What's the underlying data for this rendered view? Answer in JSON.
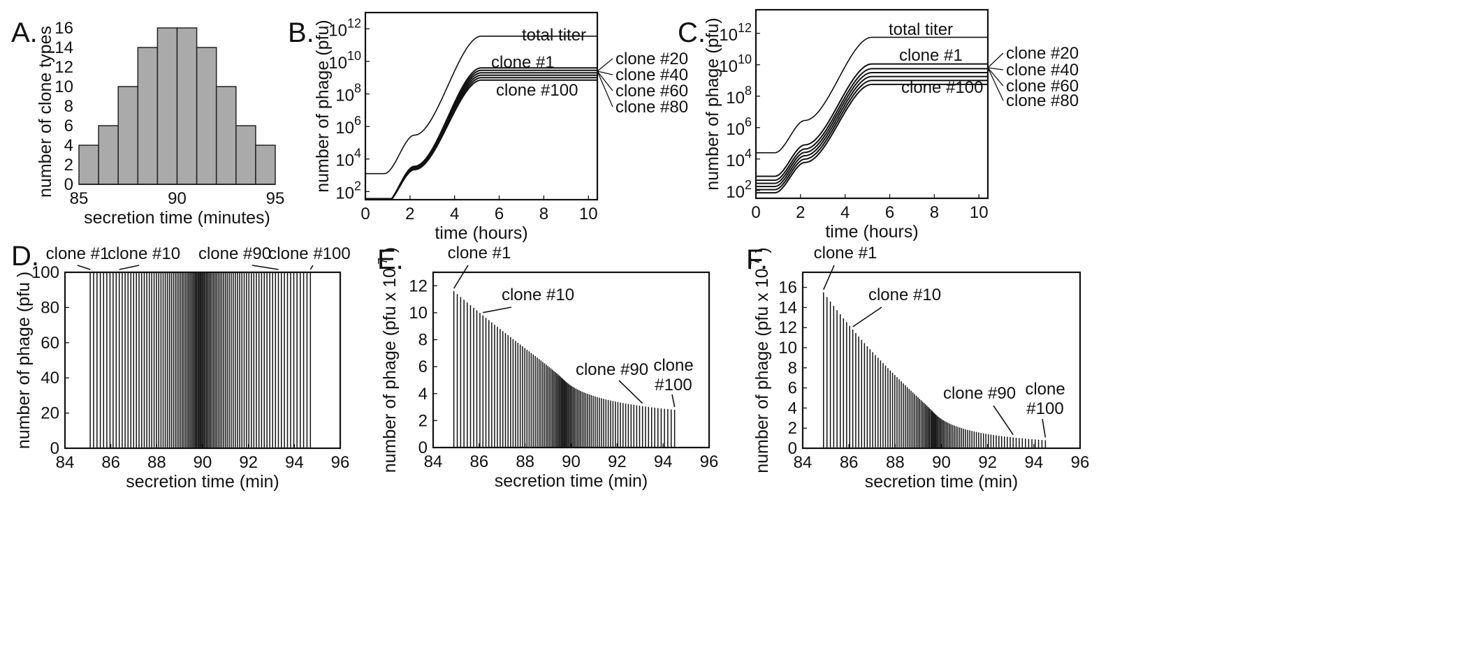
{
  "chart_data": [
    {
      "panel": "A.",
      "type": "bar",
      "xlabel": "secretion time (minutes)",
      "ylabel": "number of clone types",
      "xlim": [
        85,
        95
      ],
      "ylim": [
        0,
        16
      ],
      "xticks": [
        85,
        90,
        95
      ],
      "yticks": [
        0,
        2,
        4,
        6,
        8,
        10,
        12,
        14,
        16
      ],
      "bin_edges": [
        85,
        86,
        87,
        88,
        89,
        90,
        91,
        92,
        93,
        94,
        95
      ],
      "values": [
        4,
        6,
        10,
        14,
        16,
        16,
        14,
        10,
        6,
        4
      ],
      "bar_color": "#aaaaaa"
    },
    {
      "panel": "B.",
      "type": "line",
      "xlabel": "time (hours)",
      "ylabel": "number of phage (pfu)",
      "xlim": [
        0,
        10.4
      ],
      "ylog": true,
      "ylim_log10": [
        1.5,
        13
      ],
      "xticks": [
        0,
        2,
        4,
        6,
        8,
        10
      ],
      "yticks_exp": [
        2,
        4,
        6,
        8,
        10,
        12
      ],
      "series": [
        {
          "name": "total titer",
          "start_log10": 3.1,
          "final_log10": 11.55
        },
        {
          "name": "clone #1",
          "start_log10": 1.2,
          "final_log10": 9.6
        },
        {
          "name": "clone #20",
          "start_log10": 1.2,
          "final_log10": 9.45
        },
        {
          "name": "clone #40",
          "start_log10": 1.2,
          "final_log10": 9.3
        },
        {
          "name": "clone #60",
          "start_log10": 1.2,
          "final_log10": 9.15
        },
        {
          "name": "clone #80",
          "start_log10": 1.2,
          "final_log10": 9.0
        },
        {
          "name": "clone #100",
          "start_log10": 1.2,
          "final_log10": 8.85
        }
      ],
      "annotations": [
        "total titer",
        "clone #1",
        "clone #100",
        "clone #20",
        "clone #40",
        "clone #60",
        "clone #80"
      ]
    },
    {
      "panel": "C.",
      "type": "line",
      "xlabel": "time (hours)",
      "ylabel": "number of phage (pfu)",
      "xlim": [
        0,
        10.4
      ],
      "ylog": true,
      "ylim_log10": [
        1.5,
        13.5
      ],
      "xticks": [
        0,
        2,
        4,
        6,
        8,
        10
      ],
      "yticks_exp": [
        2,
        4,
        6,
        8,
        10,
        12
      ],
      "series": [
        {
          "name": "total titer",
          "start_log10": 4.4,
          "final_log10": 11.75
        },
        {
          "name": "clone #1",
          "start_log10": 2.9,
          "final_log10": 10.05
        },
        {
          "name": "clone #20",
          "start_log10": 2.65,
          "final_log10": 9.75
        },
        {
          "name": "clone #40",
          "start_log10": 2.45,
          "final_log10": 9.5
        },
        {
          "name": "clone #60",
          "start_log10": 2.25,
          "final_log10": 9.25
        },
        {
          "name": "clone #80",
          "start_log10": 2.05,
          "final_log10": 9.0
        },
        {
          "name": "clone #100",
          "start_log10": 1.85,
          "final_log10": 8.75
        }
      ],
      "annotations": [
        "total titer",
        "clone #1",
        "clone #100",
        "clone #20",
        "clone #40",
        "clone #60",
        "clone #80"
      ]
    },
    {
      "panel": "D.",
      "type": "bar",
      "xlabel": "secretion time (min)",
      "ylabel": "number of phage (pfu )",
      "xlim": [
        84,
        96
      ],
      "ylim": [
        0,
        100
      ],
      "xticks": [
        84,
        86,
        88,
        90,
        92,
        94,
        96
      ],
      "yticks": [
        0,
        20,
        40,
        60,
        80,
        100
      ],
      "n_clones": 100,
      "secretion_range": [
        85.1,
        94.7
      ],
      "values_all": 100,
      "annotations": [
        {
          "text": "clone #1",
          "clone": 1
        },
        {
          "text": "clone #10",
          "clone": 10
        },
        {
          "text": "clone #90",
          "clone": 90
        },
        {
          "text": "clone #100",
          "clone": 100
        }
      ]
    },
    {
      "panel": "E.",
      "type": "bar",
      "xlabel": "secretion time (min)",
      "ylabel": "number of phage (pfu x 10",
      "ylabel_exponent": "7",
      "ylabel_close": ")",
      "xlim": [
        84,
        96
      ],
      "ylim": [
        0,
        13
      ],
      "xticks": [
        84,
        86,
        88,
        90,
        92,
        94,
        96
      ],
      "yticks": [
        0,
        2,
        4,
        6,
        8,
        10,
        12
      ],
      "n_clones": 100,
      "secretion_range": [
        84.9,
        94.5
      ],
      "value_first": 11.6,
      "value_last": 2.8,
      "decay_shape": 2.2,
      "annotations": [
        {
          "text": "clone #1",
          "clone": 1
        },
        {
          "text": "clone #10",
          "clone": 10
        },
        {
          "text": "clone #90",
          "clone": 90
        },
        {
          "text": "clone",
          "text2": "#100",
          "clone": 100
        }
      ]
    },
    {
      "panel": "F.",
      "type": "bar",
      "xlabel": "secretion time (min)",
      "ylabel": "number of phage (pfu x 10",
      "ylabel_exponent": "7",
      "ylabel_close": ")",
      "xlim": [
        84,
        96
      ],
      "ylim": [
        0,
        17.5
      ],
      "xticks": [
        84,
        86,
        88,
        90,
        92,
        94,
        96
      ],
      "yticks": [
        0,
        2,
        4,
        6,
        8,
        10,
        12,
        14,
        16
      ],
      "n_clones": 100,
      "secretion_range": [
        84.9,
        94.5
      ],
      "value_first": 15.5,
      "value_last": 0.8,
      "decay_shape": 3.0,
      "annotations": [
        {
          "text": "clone #1",
          "clone": 1
        },
        {
          "text": "clone #10",
          "clone": 10
        },
        {
          "text": "clone #90",
          "clone": 90
        },
        {
          "text": "clone",
          "text2": "#100",
          "clone": 100
        }
      ]
    }
  ]
}
